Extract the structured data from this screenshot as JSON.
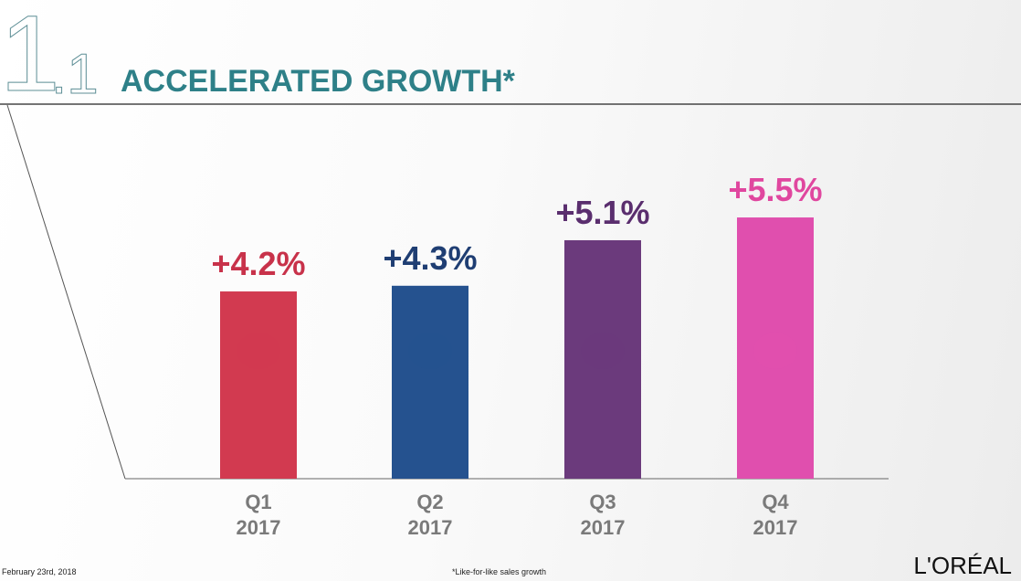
{
  "header": {
    "section_number": "1",
    "subsection_number": ".1",
    "title": "ACCELERATED GROWTH*"
  },
  "footer": {
    "date": "February 23rd, 2018",
    "footnote": "*Like-for-like sales growth",
    "logo": "L'ORÉAL"
  },
  "chart_data": {
    "type": "bar",
    "categories": [
      "Q1\n2017",
      "Q2\n2017",
      "Q3\n2017",
      "Q4\n2017"
    ],
    "category_lines": [
      [
        "Q1",
        "2017"
      ],
      [
        "Q2",
        "2017"
      ],
      [
        "Q3",
        "2017"
      ],
      [
        "Q4",
        "2017"
      ]
    ],
    "values": [
      4.2,
      4.3,
      5.1,
      5.5
    ],
    "data_labels": [
      "+4.2%",
      "+4.3%",
      "+5.1%",
      "+5.5%"
    ],
    "bar_colors": [
      "#d23a50",
      "#25528f",
      "#6b3a7c",
      "#e04fae"
    ],
    "label_colors": [
      "#c8324a",
      "#1f3e73",
      "#5a2e6e",
      "#e0479f"
    ],
    "title": "",
    "xlabel": "",
    "ylabel": "",
    "grid": false,
    "legend": "none"
  }
}
